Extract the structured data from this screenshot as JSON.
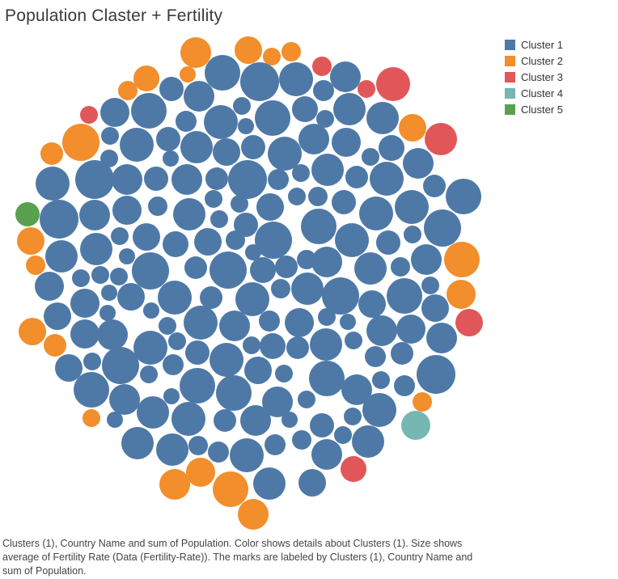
{
  "chart_data": {
    "type": "packed-bubble",
    "title": "Population Claster + Fertility",
    "legend": {
      "placement": "top-right",
      "entries": [
        {
          "name": "Cluster 1",
          "color": "#4e79a7"
        },
        {
          "name": "Cluster 2",
          "color": "#f28e2b"
        },
        {
          "name": "Cluster 3",
          "color": "#e15759"
        },
        {
          "name": "Cluster 4",
          "color": "#76b7b2"
        },
        {
          "name": "Cluster 5",
          "color": "#59a14f"
        }
      ]
    },
    "caption": "Clusters (1), Country Name and sum of Population.  Color shows details about Clusters (1).  Size shows average of Fertility Rate (Data (Fertility-Rate)).  The marks are labeled by Clusters (1), Country Name and sum of Population.",
    "cluster_counts": {
      "Cluster 1": 193,
      "Cluster 2": 26,
      "Cluster 3": 7,
      "Cluster 4": 1,
      "Cluster 5": 1
    }
  }
}
